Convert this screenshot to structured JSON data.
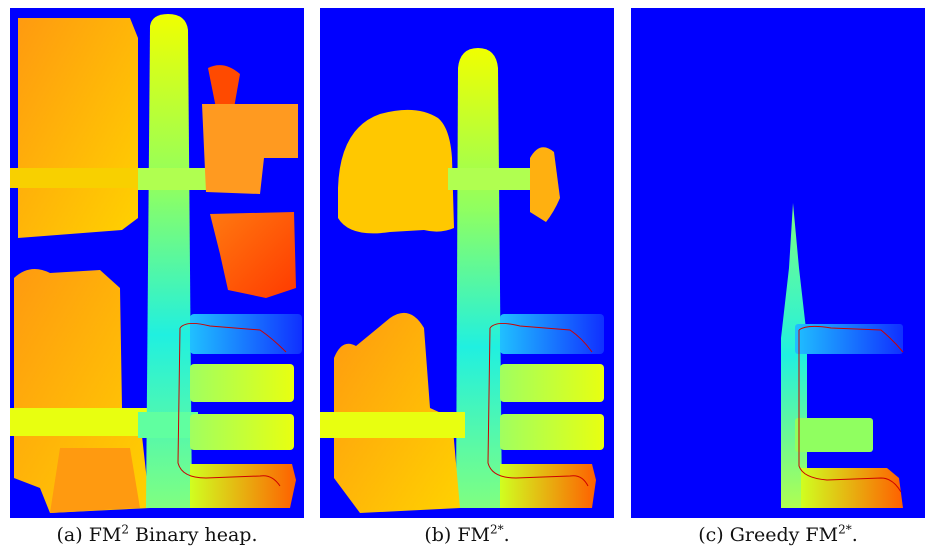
{
  "captions": [
    {
      "label": "(a)",
      "prefix": "FM",
      "sup": "2",
      "suffix": " Binary heap."
    },
    {
      "label": "(b)",
      "prefix": "FM",
      "sup": "2*",
      "suffix": "."
    },
    {
      "label": "(c)",
      "prefix": "Greedy FM",
      "sup": "2*",
      "suffix": "."
    }
  ],
  "colors": {
    "background": "#0000ff",
    "near": "#00e8ff",
    "mid": "#c8ff20",
    "far": "#ffc000",
    "farthest": "#ff3800",
    "path": "#cc0000"
  }
}
